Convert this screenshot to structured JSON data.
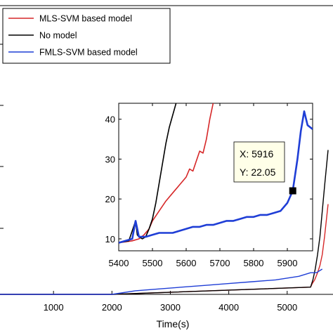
{
  "chart_data": [
    {
      "type": "line",
      "role": "main",
      "xlabel": "Time(s)",
      "x_ticks": [
        "1000",
        "2000",
        "3000",
        "4000",
        "5000"
      ],
      "xlim": [
        0,
        5700
      ],
      "ylim": [
        0,
        80
      ],
      "legend": {
        "position": "top-left",
        "entries": [
          "MLS-SVM based model",
          "No model",
          "FMLS-SVM based model"
        ]
      },
      "series": [
        {
          "name": "MLS-SVM based model",
          "color": "#d62728",
          "x": [
            0,
            2000,
            5400,
            5430,
            5470,
            5520,
            5560,
            5600,
            5640,
            5700
          ],
          "y": [
            0,
            0,
            2,
            3,
            4,
            6,
            8,
            11,
            16,
            25
          ]
        },
        {
          "name": "No model",
          "color": "#000000",
          "x": [
            0,
            2000,
            5400,
            5440,
            5480,
            5520,
            5560,
            5600,
            5640,
            5700
          ],
          "y": [
            0,
            0,
            2,
            4,
            7,
            11,
            16,
            23,
            30,
            40
          ]
        },
        {
          "name": "FMLS-SVM based model",
          "color": "#1f3ed6",
          "x": [
            0,
            2000,
            2400,
            2800,
            3200,
            3600,
            4000,
            4400,
            4800,
            5200,
            5400,
            5500,
            5600
          ],
          "y": [
            0,
            0,
            1,
            1.5,
            2,
            2.5,
            3,
            3.5,
            4,
            5,
            6,
            6,
            7
          ]
        }
      ]
    },
    {
      "type": "line",
      "role": "inset",
      "xlim": [
        5400,
        5975
      ],
      "ylim": [
        7,
        44
      ],
      "x_ticks": [
        "5400",
        "5500",
        "5600",
        "5700",
        "5800",
        "5900"
      ],
      "y_ticks": [
        "10",
        "20",
        "30",
        "40"
      ],
      "series": [
        {
          "name": "MLS-SVM based model",
          "color": "#d62728",
          "x": [
            5400,
            5440,
            5460,
            5475,
            5490,
            5500,
            5520,
            5540,
            5560,
            5580,
            5600,
            5610,
            5620,
            5630,
            5640,
            5650,
            5660,
            5670,
            5680
          ],
          "y": [
            9,
            9.5,
            10,
            11,
            12.5,
            14.5,
            17,
            19.5,
            21.5,
            23.5,
            25.5,
            27.5,
            27,
            29.5,
            32,
            31.5,
            35,
            40,
            44
          ]
        },
        {
          "name": "No model",
          "color": "#000000",
          "x": [
            5400,
            5430,
            5440,
            5450,
            5455,
            5460,
            5470,
            5480,
            5490,
            5500,
            5510,
            5520,
            5530,
            5540,
            5550,
            5560,
            5570
          ],
          "y": [
            9,
            9.5,
            12,
            14.5,
            11,
            10.5,
            10,
            10.5,
            12.5,
            15,
            19,
            24,
            29,
            34,
            38,
            41,
            44
          ]
        },
        {
          "name": "FMLS-SVM based model",
          "color": "#1f3ed6",
          "x": [
            5400,
            5420,
            5440,
            5450,
            5460,
            5480,
            5500,
            5520,
            5540,
            5560,
            5580,
            5600,
            5620,
            5640,
            5660,
            5680,
            5700,
            5720,
            5740,
            5760,
            5780,
            5800,
            5820,
            5840,
            5860,
            5880,
            5900,
            5916,
            5930,
            5940,
            5950,
            5960,
            5975
          ],
          "y": [
            9,
            9.5,
            10,
            14.5,
            10.5,
            10.5,
            11,
            11.5,
            11.5,
            11.5,
            12,
            12.5,
            13,
            13,
            13.5,
            13.5,
            14,
            14.5,
            14.5,
            15,
            15.5,
            15.5,
            16,
            16,
            16.5,
            17,
            19,
            22.05,
            30,
            37,
            42,
            38.5,
            37.5
          ]
        }
      ],
      "datatip": {
        "x": 5916,
        "y": 22.05,
        "x_text": "X: 5916",
        "y_text": "Y: 22.05"
      }
    }
  ]
}
